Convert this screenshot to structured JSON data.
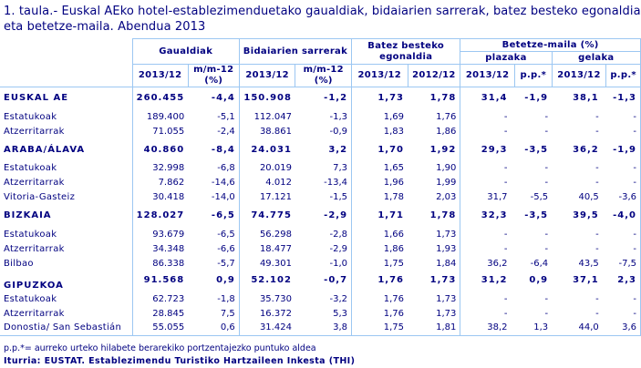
{
  "title": "1. taula.- Euskal AEko hotel-establezimenduetako gaualdiak, bidaiarien sarrerak, batez besteko egonaldia eta betetze-maila. Abendua 2013",
  "header": {
    "gaualdiak": "Gaualdiak",
    "bidaiarien": "Bidaiarien sarrerak",
    "batez": "Batez besteko egonaldia",
    "betetze": "Betetze-maila (%)",
    "plazaka": "plazaka",
    "gelaka": "gelaka",
    "cols": [
      "2013/12",
      "m/m-12 (%)",
      "2013/12",
      "m/m-12 (%)",
      "2013/12",
      "2012/12",
      "2013/12",
      "p.p.*",
      "2013/12",
      "p.p.*"
    ]
  },
  "rows": [
    {
      "label": "EUSKAL AE",
      "type": "section",
      "values": [
        "260.455",
        "-4,4",
        "150.908",
        "-1,2",
        "1,73",
        "1,78",
        "31,4",
        "-1,9",
        "38,1",
        "-1,3"
      ]
    },
    {
      "label": "Estatukoak",
      "type": "sub",
      "values": [
        "189.400",
        "-5,1",
        "112.047",
        "-1,3",
        "1,69",
        "1,76",
        "-",
        "-",
        "-",
        "-"
      ]
    },
    {
      "label": "Atzerritarrak",
      "type": "sub",
      "values": [
        "71.055",
        "-2,4",
        "38.861",
        "-0,9",
        "1,83",
        "1,86",
        "-",
        "-",
        "-",
        "-"
      ]
    },
    {
      "label": "ARABA/ÁLAVA",
      "type": "section",
      "values": [
        "40.860",
        "-8,4",
        "24.031",
        "3,2",
        "1,70",
        "1,92",
        "29,3",
        "-3,5",
        "36,2",
        "-1,9"
      ]
    },
    {
      "label": "Estatukoak",
      "type": "sub",
      "values": [
        "32.998",
        "-6,8",
        "20.019",
        "7,3",
        "1,65",
        "1,90",
        "-",
        "-",
        "-",
        "-"
      ]
    },
    {
      "label": "Atzerritarrak",
      "type": "sub",
      "values": [
        "7.862",
        "-14,6",
        "4.012",
        "-13,4",
        "1,96",
        "1,99",
        "-",
        "-",
        "-",
        "-"
      ]
    },
    {
      "label": "Vitoria-Gasteiz",
      "type": "sub",
      "values": [
        "30.418",
        "-14,0",
        "17.121",
        "-1,5",
        "1,78",
        "2,03",
        "31,7",
        "-5,5",
        "40,5",
        "-3,6"
      ]
    },
    {
      "label": "BIZKAIA",
      "type": "section",
      "values": [
        "128.027",
        "-6,5",
        "74.775",
        "-2,9",
        "1,71",
        "1,78",
        "32,3",
        "-3,5",
        "39,5",
        "-4,0"
      ]
    },
    {
      "label": "Estatukoak",
      "type": "sub",
      "values": [
        "93.679",
        "-6,5",
        "56.298",
        "-2,8",
        "1,66",
        "1,73",
        "-",
        "-",
        "-",
        "-"
      ]
    },
    {
      "label": "Atzerritarrak",
      "type": "sub",
      "values": [
        "34.348",
        "-6,6",
        "18.477",
        "-2,9",
        "1,86",
        "1,93",
        "-",
        "-",
        "-",
        "-"
      ]
    },
    {
      "label": "Bilbao",
      "type": "sub",
      "values": [
        "86.338",
        "-5,7",
        "49.301",
        "-1,0",
        "1,75",
        "1,84",
        "36,2",
        "-6,4",
        "43,5",
        "-7,5"
      ]
    },
    {
      "label": "GIPUZKOA",
      "type": "section",
      "values": [
        "91.568",
        "0,9",
        "52.102",
        "-0,7",
        "1,76",
        "1,73",
        "31,2",
        "0,9",
        "37,1",
        "2,3"
      ]
    },
    {
      "label": "Estatukoak",
      "type": "sub",
      "values": [
        "62.723",
        "-1,8",
        "35.730",
        "-3,2",
        "1,76",
        "1,73",
        "-",
        "-",
        "-",
        "-"
      ]
    },
    {
      "label": "Atzerritarrak",
      "type": "sub",
      "values": [
        "28.845",
        "7,5",
        "16.372",
        "5,3",
        "1,76",
        "1,73",
        "-",
        "-",
        "-",
        "-"
      ]
    },
    {
      "label": "Donostia/ San Sebastián",
      "type": "sub",
      "values": [
        "55.055",
        "0,6",
        "31.424",
        "3,8",
        "1,75",
        "1,81",
        "38,2",
        "1,3",
        "44,0",
        "3,6"
      ]
    }
  ],
  "footnote": "p.p.*= aurreko urteko hilabete berarekiko portzentajezko puntuko aldea",
  "source": "Iturria: EUSTAT. Establezimendu Turistiko Hartzaileen Inkesta (THI)",
  "colors": {
    "text": "#000080",
    "grid": "#9cc7f2"
  }
}
